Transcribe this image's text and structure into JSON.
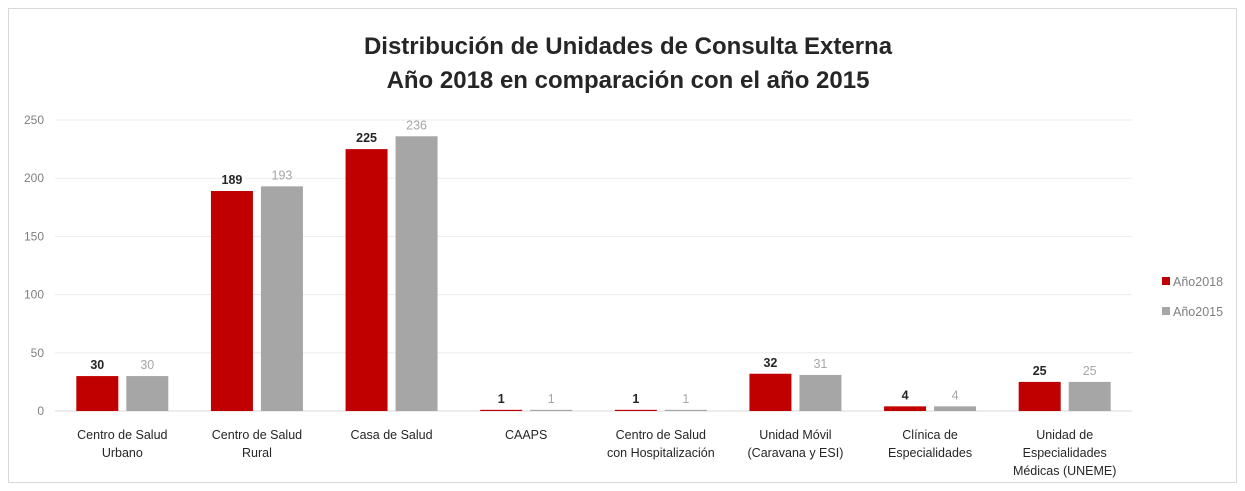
{
  "chart_data": {
    "type": "bar",
    "title": [
      "Distribución de Unidades de Consulta Externa",
      "Año 2018 en comparación con el año 2015"
    ],
    "categories": [
      [
        "Centro de Salud",
        "Urbano"
      ],
      [
        "Centro de Salud",
        "Rural"
      ],
      [
        "Casa de Salud"
      ],
      [
        "CAAPS"
      ],
      [
        "Centro de Salud",
        "con Hospitalización"
      ],
      [
        "Unidad Móvil",
        "(Caravana y ESI)"
      ],
      [
        "Clínica de",
        "Especialidades"
      ],
      [
        "Unidad de",
        "Especialidades",
        "Médicas (UNEME)"
      ]
    ],
    "series": [
      {
        "name": "Año2018",
        "color": "#c00000",
        "label_color": "#262626",
        "label_bold": true,
        "values": [
          30,
          189,
          225,
          1,
          1,
          32,
          4,
          25
        ]
      },
      {
        "name": "Año2015",
        "color": "#a6a6a6",
        "label_color": "#a6a6a6",
        "label_bold": false,
        "values": [
          30,
          193,
          236,
          1,
          1,
          31,
          4,
          25
        ]
      }
    ],
    "ylim": [
      0,
      250
    ],
    "yticks": [
      0,
      50,
      100,
      150,
      200,
      250
    ],
    "xlabel": "",
    "ylabel": "",
    "grid": true,
    "legend_position": "right"
  }
}
